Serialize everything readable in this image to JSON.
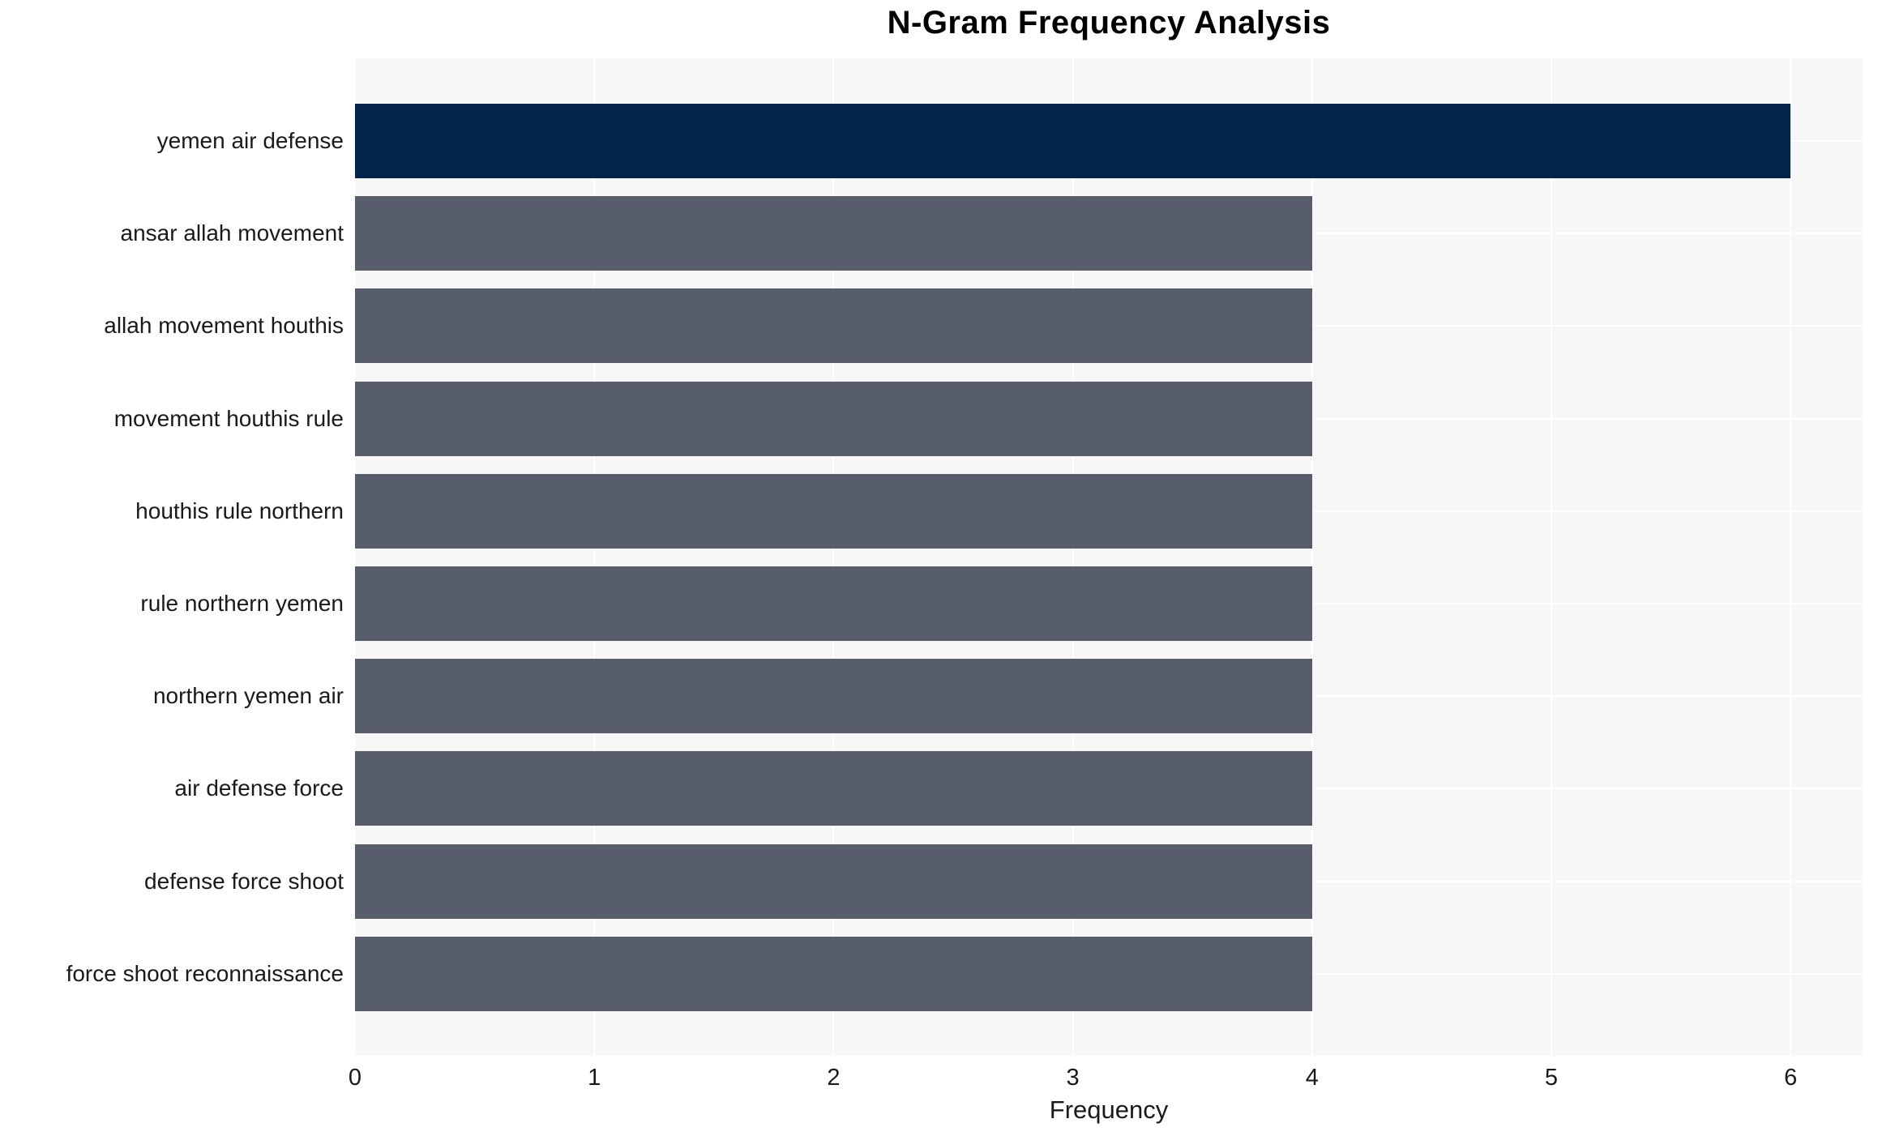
{
  "chart_data": {
    "type": "bar",
    "orientation": "horizontal",
    "title": "N-Gram Frequency Analysis",
    "xlabel": "Frequency",
    "ylabel": "",
    "categories": [
      "yemen air defense",
      "ansar allah movement",
      "allah movement houthis",
      "movement houthis rule",
      "houthis rule northern",
      "rule northern yemen",
      "northern yemen air",
      "air defense force",
      "defense force shoot",
      "force shoot reconnaissance"
    ],
    "values": [
      6,
      4,
      4,
      4,
      4,
      4,
      4,
      4,
      4,
      4
    ],
    "bar_colors": [
      "#03224c",
      "#575d6b",
      "#575d6b",
      "#575d6b",
      "#575d6b",
      "#575d6b",
      "#575d6b",
      "#575d6b",
      "#575d6b",
      "#575d6b"
    ],
    "xticks": [
      "0",
      "1",
      "2",
      "3",
      "4",
      "5",
      "6"
    ],
    "xlim": [
      0,
      6.3
    ],
    "grid": true,
    "legend_position": "none",
    "colors": {
      "plot_background": "#f7f7f8",
      "grid_line": "#ffffff",
      "tick_text": "#1a1a1a",
      "title_text": "#000000",
      "highlight_bar": "#03224c",
      "default_bar": "#575d6b"
    }
  }
}
